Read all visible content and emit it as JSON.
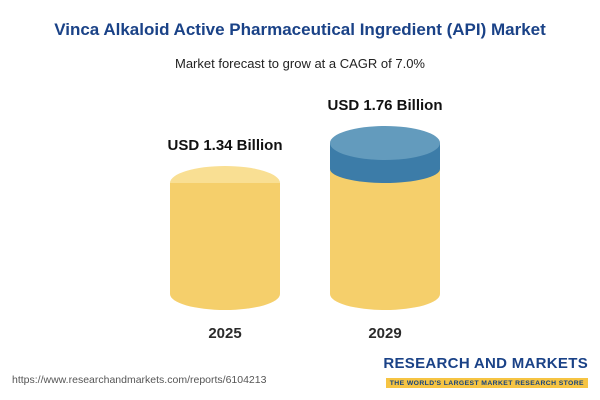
{
  "header": {
    "title": "Vinca Alkaloid Active Pharmaceutical Ingredient (API) Market",
    "subtitle": "Market forecast to grow at a CAGR of 7.0%"
  },
  "chart_data": {
    "type": "bar",
    "title": "Vinca Alkaloid Active Pharmaceutical Ingredient (API) Market",
    "subtitle": "Market forecast to grow at a CAGR of 7.0%",
    "categories": [
      "2025",
      "2029"
    ],
    "values": [
      1.34,
      1.76
    ],
    "value_labels": [
      "USD 1.34 Billion",
      "USD 1.76 Billion"
    ],
    "unit": "USD Billion",
    "cagr": "7.0%",
    "ylim": [
      0,
      2
    ],
    "legend": "none",
    "grid": false,
    "colors": {
      "base_bar": "#f5cf6b",
      "base_bar_top": "#f9df93",
      "growth_segment": "#3c7ca8",
      "growth_segment_top": "#639bbd",
      "title_text": "#1a4287"
    }
  },
  "footer": {
    "url": "https://www.researchandmarkets.com/reports/6104213",
    "brand": "RESEARCH AND MARKETS",
    "tagline": "THE WORLD'S LARGEST MARKET RESEARCH STORE"
  }
}
